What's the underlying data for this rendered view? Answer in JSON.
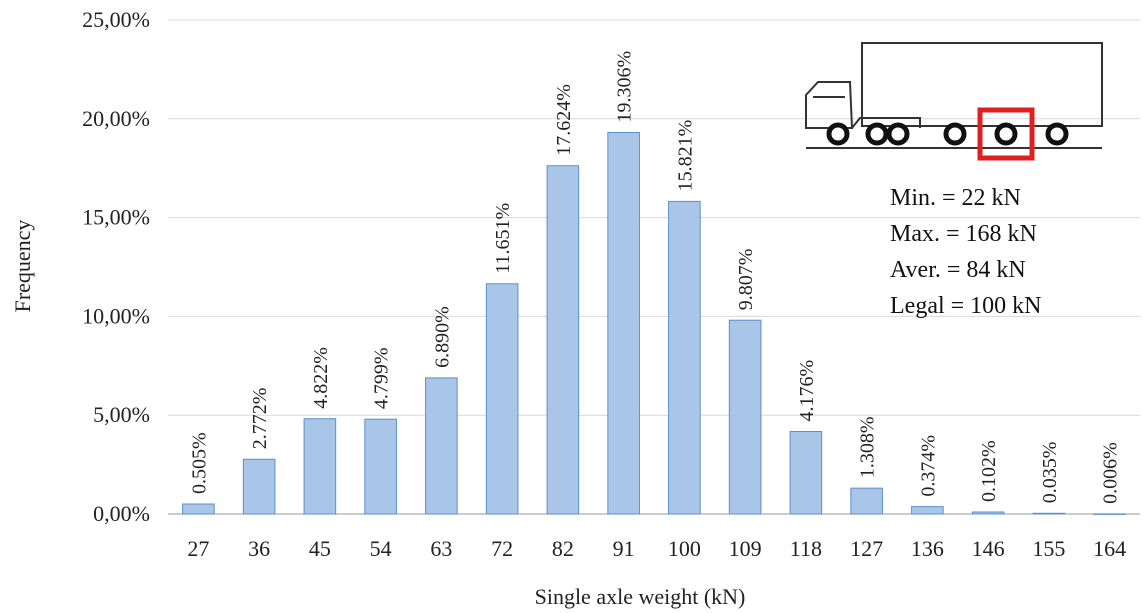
{
  "chart_data": {
    "type": "bar",
    "categories": [
      "27",
      "36",
      "45",
      "54",
      "63",
      "72",
      "82",
      "91",
      "100",
      "109",
      "118",
      "127",
      "136",
      "146",
      "155",
      "164"
    ],
    "values": [
      0.505,
      2.772,
      4.822,
      4.799,
      6.89,
      11.651,
      17.624,
      19.306,
      15.821,
      9.807,
      4.176,
      1.308,
      0.374,
      0.102,
      0.035,
      0.006
    ],
    "data_labels": [
      "0.505%",
      "2.772%",
      "4.822%",
      "4.799%",
      "6.890%",
      "11.651%",
      "17.624%",
      "19.306%",
      "15.821%",
      "9.807%",
      "4.176%",
      "1.308%",
      "0.374%",
      "0.102%",
      "0.035%",
      "0.006%"
    ],
    "y_ticks": [
      0,
      5,
      10,
      15,
      20,
      25
    ],
    "y_tick_labels": [
      "0,00%",
      "5,00%",
      "10,00%",
      "15,00%",
      "20,00%",
      "25,00%"
    ],
    "ylim": [
      0,
      25
    ],
    "xlabel": "Single axle weight (kN)",
    "ylabel": "Frequency",
    "grid": true,
    "bar_color": "#a9c6e8",
    "bar_edge_color": "#5b8fcc",
    "annotations": [
      "Min. = 22 kN",
      "Max. = 168 kN",
      "Aver. = 84 kN",
      "Legal = 100 kN"
    ]
  },
  "stats": {
    "min": "Min. = 22 kN",
    "max": "Max. = 168 kN",
    "aver": "Aver. = 84 kN",
    "legal": "Legal = 100 kN"
  },
  "highlight_color": "#e02020"
}
